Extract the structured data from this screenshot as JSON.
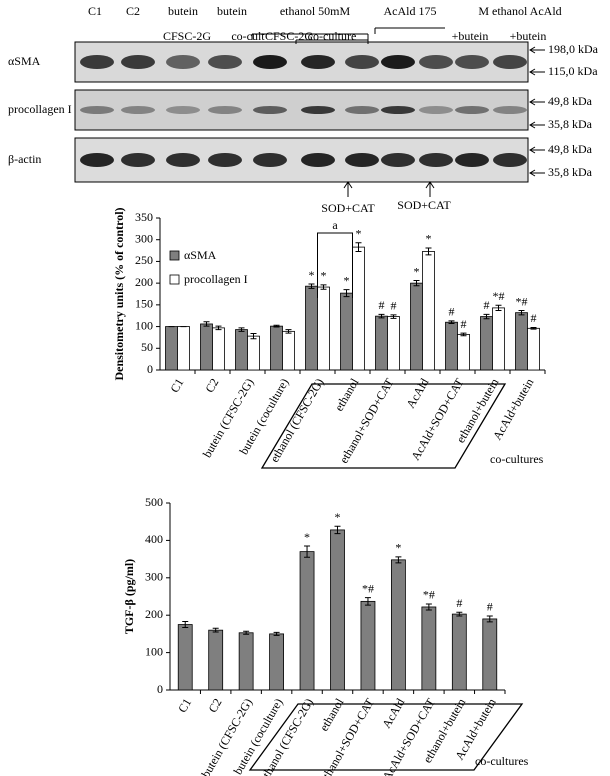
{
  "blot": {
    "lane_labels": [
      "C1",
      "C2",
      "butein",
      "butein",
      "ethanol 50mM",
      "AcAld 175",
      "M ethanol AcAld"
    ],
    "sub_labels": [
      "CFSC-2G",
      "co-cult",
      "CFSC-2G",
      "co-culture",
      "+butein",
      "+butein"
    ],
    "rows": [
      {
        "label": "αSMA",
        "markers": [
          "198,0 kDa",
          "115,0 kDa"
        ]
      },
      {
        "label": "procollagen I",
        "markers": [
          "49,8 kDa",
          "35,8 kDa"
        ]
      },
      {
        "label": "β-actin",
        "markers": [
          "49,8 kDa",
          "35,8 kDa"
        ]
      }
    ],
    "treatment_notes": [
      "SOD+CAT",
      "SOD+CAT"
    ]
  },
  "chart_data": [
    {
      "type": "bar",
      "y_label": "Densitometry units (% of control)",
      "categories": [
        "C1",
        "C2",
        "butein (CFSC-2G)",
        "butein (coculture)",
        "ethanol (CFSC-2G)",
        "ethanol",
        "ethanol+SOD+CAT",
        "AcAld",
        "AcAld+SOD+CAT",
        "ethanol+butein",
        "AcAld+butein"
      ],
      "series": [
        {
          "name": "αSMA",
          "color": "#7f7f7f",
          "values": [
            100,
            106,
            93,
            101,
            193,
            177,
            124,
            200,
            110,
            123,
            132
          ],
          "errors": [
            0,
            5,
            4,
            2,
            5,
            8,
            4,
            6,
            3,
            5,
            5
          ],
          "markers": [
            null,
            null,
            null,
            null,
            "*",
            "*",
            "#",
            "*",
            "#",
            "#",
            "*#"
          ]
        },
        {
          "name": "procollagen I",
          "color": "#ffffff",
          "values": [
            100,
            97,
            78,
            89,
            191,
            283,
            123,
            273,
            82,
            143,
            96
          ],
          "errors": [
            0,
            4,
            6,
            4,
            5,
            10,
            4,
            8,
            3,
            6,
            2
          ],
          "markers": [
            null,
            null,
            null,
            null,
            "*",
            "*",
            "#",
            "*",
            "#",
            "*#",
            "#"
          ]
        }
      ],
      "ylim": [
        0,
        350
      ],
      "yticks": [
        0,
        50,
        100,
        150,
        200,
        250,
        300,
        350
      ],
      "legend": "upper left",
      "bracket_label": "a",
      "box_label": "co-cultures"
    },
    {
      "type": "bar",
      "y_label": "TGF-β (pg/ml)",
      "categories": [
        "C1",
        "C2",
        "butein (CFSC-2G)",
        "butein (coculture)",
        "ethanol (CFSC-2G)",
        "ethanol",
        "ethanol+SOD+CAT",
        "AcAld",
        "AcAld+SOD+CAT",
        "ethanol+butein",
        "AcAld+butein"
      ],
      "color": "#7f7f7f",
      "values": [
        175,
        160,
        153,
        150,
        370,
        428,
        237,
        348,
        222,
        203,
        190
      ],
      "errors": [
        8,
        5,
        4,
        4,
        15,
        10,
        10,
        8,
        8,
        5,
        8
      ],
      "markers": [
        null,
        null,
        null,
        null,
        "*",
        "*",
        "*#",
        "*",
        "*#",
        "#",
        "#"
      ],
      "ylim": [
        0,
        500
      ],
      "yticks": [
        0,
        100,
        200,
        300,
        400,
        500
      ],
      "box_label": "co-cultures"
    }
  ]
}
